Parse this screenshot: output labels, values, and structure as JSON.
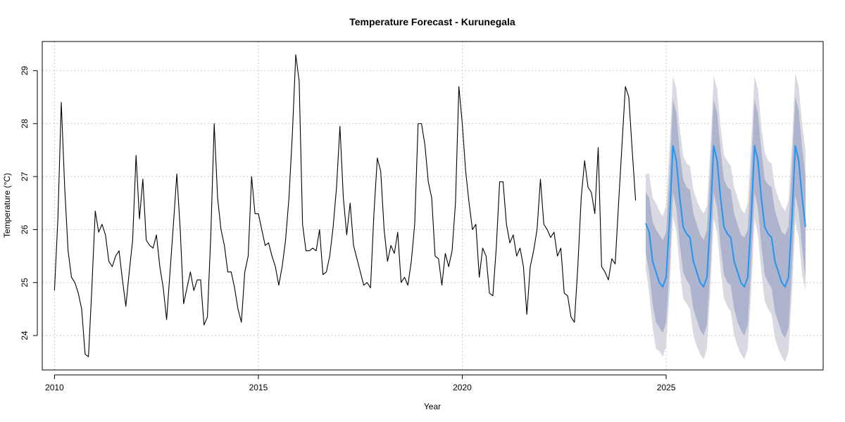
{
  "chart_data": {
    "type": "line",
    "title": "Temperature Forecast - Kurunegala",
    "xlabel": "Year",
    "ylabel": "Temperature (°C)",
    "xlim": [
      2009.7,
      2028.85
    ],
    "ylim": [
      23.35,
      29.55
    ],
    "x_ticks": [
      2010,
      2015,
      2020,
      2025
    ],
    "y_ticks": [
      24,
      25,
      26,
      27,
      28,
      29
    ],
    "grid": true,
    "legend": "none",
    "colors": {
      "history": "#000000",
      "forecast": "#2196f3",
      "band_80": "#aeb3ce",
      "band_95": "#d9d9e1"
    },
    "series": [
      {
        "role": "history",
        "start": [
          2010,
          1
        ],
        "frequency": 12,
        "values": [
          24.85,
          26.2,
          28.4,
          26.8,
          25.6,
          25.1,
          25.0,
          24.8,
          24.5,
          23.65,
          23.6,
          24.9,
          26.35,
          25.95,
          26.1,
          25.9,
          25.4,
          25.3,
          25.5,
          25.6,
          25.05,
          24.55,
          25.2,
          25.8,
          27.4,
          26.2,
          26.95,
          25.8,
          25.7,
          25.65,
          25.9,
          25.3,
          24.9,
          24.3,
          25.2,
          26.1,
          27.05,
          26.0,
          24.6,
          24.9,
          25.2,
          24.85,
          25.05,
          25.05,
          24.2,
          24.35,
          25.9,
          28.0,
          26.6,
          26.0,
          25.7,
          25.2,
          25.2,
          24.9,
          24.5,
          24.25,
          25.2,
          25.5,
          27.0,
          26.3,
          26.3,
          26.0,
          25.7,
          25.75,
          25.5,
          25.3,
          24.95,
          25.3,
          25.8,
          26.6,
          27.8,
          29.3,
          28.8,
          26.1,
          25.6,
          25.6,
          25.65,
          25.6,
          26.0,
          25.15,
          25.2,
          25.5,
          26.05,
          26.8,
          27.95,
          26.6,
          25.9,
          26.5,
          25.7,
          25.45,
          25.2,
          24.95,
          25.0,
          24.9,
          26.3,
          27.35,
          27.1,
          26.0,
          25.4,
          25.7,
          25.55,
          25.95,
          25.0,
          25.1,
          24.95,
          25.4,
          26.1,
          28.0,
          28.0,
          27.6,
          26.9,
          26.6,
          25.5,
          25.45,
          24.95,
          25.55,
          25.3,
          25.6,
          26.5,
          28.7,
          28.0,
          27.1,
          26.5,
          26.0,
          26.1,
          25.1,
          25.65,
          25.5,
          24.8,
          24.75,
          25.65,
          26.9,
          26.9,
          26.1,
          25.75,
          25.9,
          25.5,
          25.65,
          25.3,
          24.4,
          25.3,
          25.6,
          26.0,
          26.95,
          26.1,
          26.0,
          25.85,
          25.95,
          25.5,
          25.65,
          24.8,
          24.75,
          24.35,
          24.25,
          25.3,
          26.6,
          27.3,
          26.8,
          26.7,
          26.3,
          27.55,
          25.3,
          25.2,
          25.05,
          25.45,
          25.35,
          26.5,
          27.6,
          28.7,
          28.5,
          27.5,
          26.55
        ]
      },
      {
        "role": "forecast",
        "start": [
          2024,
          7
        ],
        "frequency": 12,
        "mean": [
          26.12,
          25.95,
          25.4,
          25.2,
          25.0,
          24.92,
          25.1,
          26.2,
          27.58,
          27.3,
          26.6,
          26.05,
          25.92,
          25.85,
          25.4,
          25.2,
          25.0,
          24.92,
          25.1,
          26.2,
          27.58,
          27.3,
          26.6,
          26.05,
          25.92,
          25.85,
          25.4,
          25.2,
          25.0,
          24.92,
          25.1,
          26.2,
          27.58,
          27.3,
          26.6,
          26.05,
          25.92,
          25.85,
          25.4,
          25.2,
          25.0,
          24.92,
          25.1,
          26.2,
          27.58,
          27.3,
          26.6,
          26.05
        ],
        "lo80": [
          25.55,
          25.2,
          24.6,
          24.25,
          24.15,
          24.05,
          24.25,
          25.3,
          26.7,
          26.4,
          25.7,
          25.2,
          25.05,
          24.95,
          24.5,
          24.3,
          24.1,
          24.0,
          24.2,
          25.3,
          26.7,
          26.4,
          25.7,
          25.15,
          25.0,
          24.95,
          24.5,
          24.25,
          24.1,
          24.0,
          24.2,
          25.3,
          26.7,
          26.4,
          25.7,
          25.15,
          25.0,
          24.9,
          24.45,
          24.25,
          24.05,
          23.95,
          24.15,
          25.25,
          26.65,
          26.35,
          25.65,
          25.1
        ],
        "hi80": [
          26.7,
          26.6,
          26.15,
          26.0,
          25.9,
          25.8,
          25.95,
          27.05,
          28.45,
          28.2,
          27.45,
          26.95,
          26.8,
          26.75,
          26.3,
          26.1,
          25.9,
          25.8,
          26.0,
          27.1,
          28.45,
          28.2,
          27.5,
          26.95,
          26.8,
          26.75,
          26.3,
          26.1,
          25.9,
          25.85,
          26.0,
          27.1,
          28.45,
          28.2,
          27.5,
          26.95,
          26.85,
          26.8,
          26.35,
          26.15,
          25.95,
          25.9,
          26.05,
          27.15,
          28.5,
          28.25,
          27.55,
          27.0
        ],
        "lo95": [
          25.25,
          24.8,
          24.15,
          23.75,
          23.7,
          23.6,
          23.8,
          24.85,
          26.25,
          25.95,
          25.25,
          24.7,
          24.6,
          24.5,
          24.0,
          23.8,
          23.65,
          23.55,
          23.75,
          24.85,
          26.2,
          25.95,
          25.25,
          24.7,
          24.55,
          24.45,
          24.0,
          23.8,
          23.65,
          23.55,
          23.75,
          24.8,
          26.2,
          25.9,
          25.2,
          24.65,
          24.5,
          24.4,
          23.95,
          23.75,
          23.6,
          23.5,
          23.7,
          24.8,
          26.15,
          25.85,
          25.15,
          24.85
        ],
        "hi95": [
          27.05,
          27.05,
          26.6,
          26.5,
          26.35,
          26.25,
          26.45,
          27.55,
          28.9,
          28.65,
          27.9,
          27.4,
          27.25,
          27.2,
          26.75,
          26.55,
          26.4,
          26.3,
          26.45,
          27.55,
          28.9,
          28.65,
          27.95,
          27.4,
          27.3,
          27.2,
          26.8,
          26.6,
          26.4,
          26.3,
          26.5,
          27.6,
          28.9,
          28.65,
          27.95,
          27.45,
          27.3,
          27.25,
          26.8,
          26.6,
          26.45,
          26.35,
          26.55,
          27.6,
          28.95,
          28.7,
          28.0,
          27.5
        ]
      }
    ]
  }
}
